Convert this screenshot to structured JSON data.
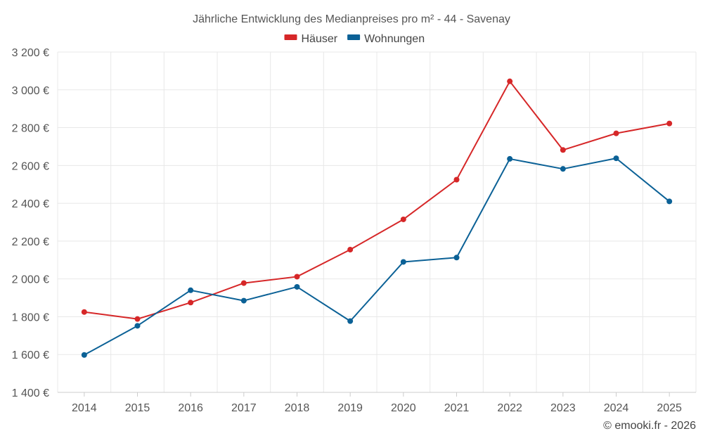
{
  "chart_data": {
    "type": "line",
    "title": "Jährliche Entwicklung des Medianpreises pro m² - 44 - Savenay",
    "categories": [
      "2014",
      "2015",
      "2016",
      "2017",
      "2018",
      "2019",
      "2020",
      "2021",
      "2022",
      "2023",
      "2024",
      "2025"
    ],
    "series": [
      {
        "name": "Häuser",
        "color": "#d62728",
        "values": [
          1825,
          1788,
          1875,
          1978,
          2012,
          2155,
          2315,
          2525,
          3045,
          2682,
          2770,
          2822
        ]
      },
      {
        "name": "Wohnungen",
        "color": "#0b6196",
        "values": [
          1598,
          1752,
          1940,
          1885,
          1958,
          1777,
          2090,
          2113,
          2635,
          2582,
          2638,
          2410
        ]
      }
    ],
    "ylim": [
      1400,
      3200
    ],
    "yticks": [
      1400,
      1600,
      1800,
      2000,
      2200,
      2400,
      2600,
      2800,
      3000,
      3200
    ],
    "ytick_labels": [
      "1 400 €",
      "1 600 €",
      "1 800 €",
      "2 000 €",
      "2 200 €",
      "2 400 €",
      "2 600 €",
      "2 800 €",
      "3 000 €",
      "3 200 €"
    ],
    "grid": true,
    "legend_position": "top-center",
    "credit": "© emooki.fr - 2026"
  }
}
